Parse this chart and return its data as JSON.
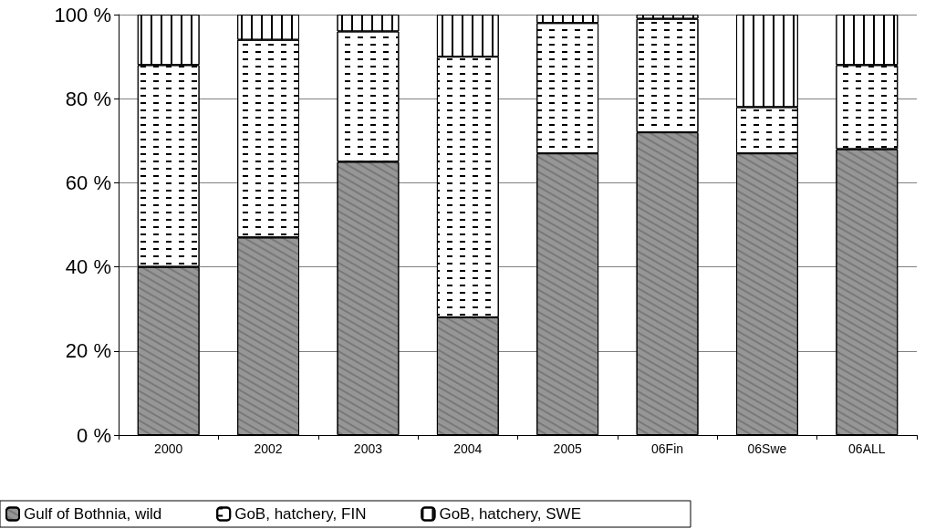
{
  "chart_data": {
    "type": "bar",
    "stacked": true,
    "categories": [
      "2000",
      "2002",
      "2003",
      "2004",
      "2005",
      "06Fin",
      "06Swe",
      "06ALL"
    ],
    "series": [
      {
        "name": "Gulf of Bothnia, wild",
        "color": "#969696",
        "values": [
          40,
          47,
          65,
          28,
          67,
          72,
          67,
          68
        ]
      },
      {
        "name": "GoB, hatchery, FIN",
        "color": "#ffffff",
        "values": [
          48,
          47,
          31,
          62,
          31,
          27,
          11,
          20
        ]
      },
      {
        "name": "GoB, hatchery, SWE",
        "color": "#ffffff",
        "values": [
          12,
          6,
          4,
          10,
          2,
          1,
          22,
          12
        ]
      }
    ],
    "ylim": [
      0,
      100
    ],
    "yticks": [
      {
        "value": 0,
        "label": "0 %"
      },
      {
        "value": 20,
        "label": "20 %"
      },
      {
        "value": 40,
        "label": "40 %"
      },
      {
        "value": 60,
        "label": "60 %"
      },
      {
        "value": 80,
        "label": "80 %"
      },
      {
        "value": 100,
        "label": "100 %"
      }
    ],
    "grid": "y",
    "legend": "bottom"
  }
}
